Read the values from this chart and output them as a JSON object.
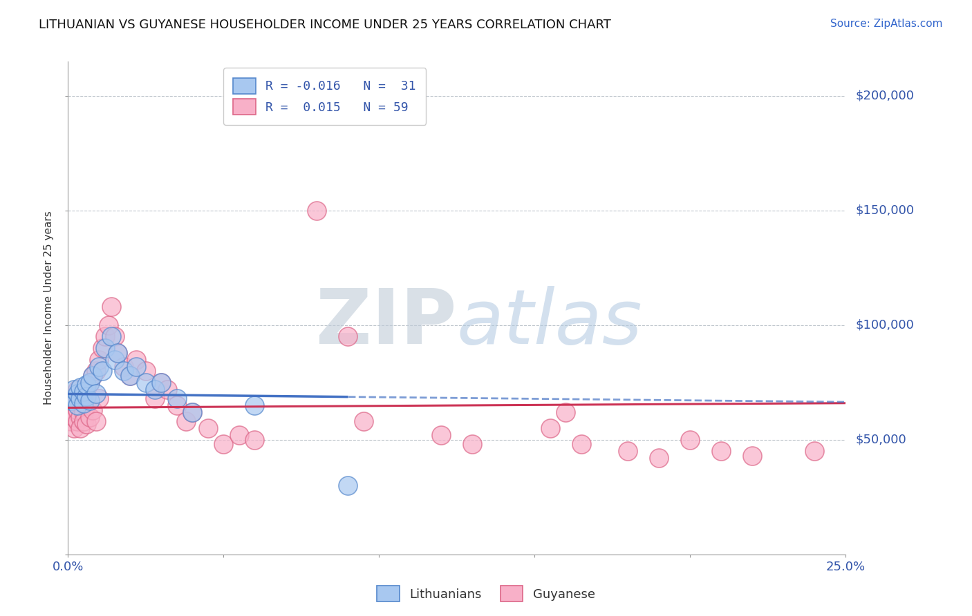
{
  "title": "LITHUANIAN VS GUYANESE HOUSEHOLDER INCOME UNDER 25 YEARS CORRELATION CHART",
  "source_text": "Source: ZipAtlas.com",
  "ylabel": "Householder Income Under 25 years",
  "xlim": [
    0.0,
    0.25
  ],
  "ylim": [
    0,
    215000
  ],
  "xticks": [
    0.0,
    0.05,
    0.1,
    0.15,
    0.2,
    0.25
  ],
  "xtick_labels": [
    "0.0%",
    "",
    "",
    "",
    "",
    "25.0%"
  ],
  "yticks": [
    0,
    50000,
    100000,
    150000,
    200000
  ],
  "ytick_labels": [
    "",
    "$50,000",
    "$100,000",
    "$150,000",
    "$200,000"
  ],
  "background_color": "#ffffff",
  "grid_color": "#b0b8c0",
  "watermark": "ZIPatlas",
  "watermark_color": "#c8d8e8",
  "lithuanian_color": "#a8c8f0",
  "guyanese_color": "#f8b0c8",
  "lithuanian_edge": "#5588cc",
  "guyanese_edge": "#dd6688",
  "lit_R": -0.016,
  "lit_N": 31,
  "guy_R": 0.015,
  "guy_N": 59,
  "lit_line_color": "#4472c4",
  "guy_line_color": "#cc3355",
  "lit_line_start_x": 0.0,
  "lit_line_end_solid_x": 0.09,
  "lit_line_end_x": 0.25,
  "lit_line_y_at_0": 70000,
  "lit_slope": -14000,
  "guy_line_y_at_0": 64000,
  "guy_slope": 8000,
  "lithuanian_x": [
    0.001,
    0.002,
    0.002,
    0.003,
    0.003,
    0.004,
    0.004,
    0.005,
    0.005,
    0.006,
    0.006,
    0.007,
    0.007,
    0.008,
    0.009,
    0.01,
    0.011,
    0.012,
    0.014,
    0.015,
    0.016,
    0.018,
    0.02,
    0.022,
    0.025,
    0.028,
    0.03,
    0.035,
    0.04,
    0.06,
    0.09
  ],
  "lithuanian_y": [
    67000,
    68000,
    72000,
    65000,
    70000,
    68000,
    73000,
    66000,
    71000,
    69000,
    74000,
    67000,
    75000,
    78000,
    70000,
    82000,
    80000,
    90000,
    95000,
    85000,
    88000,
    80000,
    78000,
    82000,
    75000,
    72000,
    75000,
    68000,
    62000,
    65000,
    30000
  ],
  "guyanese_x": [
    0.001,
    0.001,
    0.002,
    0.002,
    0.002,
    0.003,
    0.003,
    0.003,
    0.004,
    0.004,
    0.004,
    0.005,
    0.005,
    0.005,
    0.006,
    0.006,
    0.006,
    0.007,
    0.007,
    0.008,
    0.008,
    0.009,
    0.009,
    0.01,
    0.01,
    0.011,
    0.012,
    0.013,
    0.014,
    0.015,
    0.016,
    0.018,
    0.02,
    0.022,
    0.025,
    0.028,
    0.03,
    0.032,
    0.035,
    0.038,
    0.04,
    0.045,
    0.05,
    0.055,
    0.06,
    0.08,
    0.09,
    0.095,
    0.12,
    0.13,
    0.155,
    0.16,
    0.165,
    0.18,
    0.19,
    0.2,
    0.21,
    0.22,
    0.24
  ],
  "guyanese_y": [
    62000,
    58000,
    55000,
    65000,
    60000,
    58000,
    72000,
    63000,
    60000,
    67000,
    55000,
    62000,
    58000,
    68000,
    65000,
    57000,
    72000,
    60000,
    75000,
    78000,
    63000,
    80000,
    58000,
    85000,
    68000,
    90000,
    95000,
    100000,
    108000,
    95000,
    88000,
    82000,
    78000,
    85000,
    80000,
    68000,
    75000,
    72000,
    65000,
    58000,
    62000,
    55000,
    48000,
    52000,
    50000,
    150000,
    95000,
    58000,
    52000,
    48000,
    55000,
    62000,
    48000,
    45000,
    42000,
    50000,
    45000,
    43000,
    45000
  ]
}
